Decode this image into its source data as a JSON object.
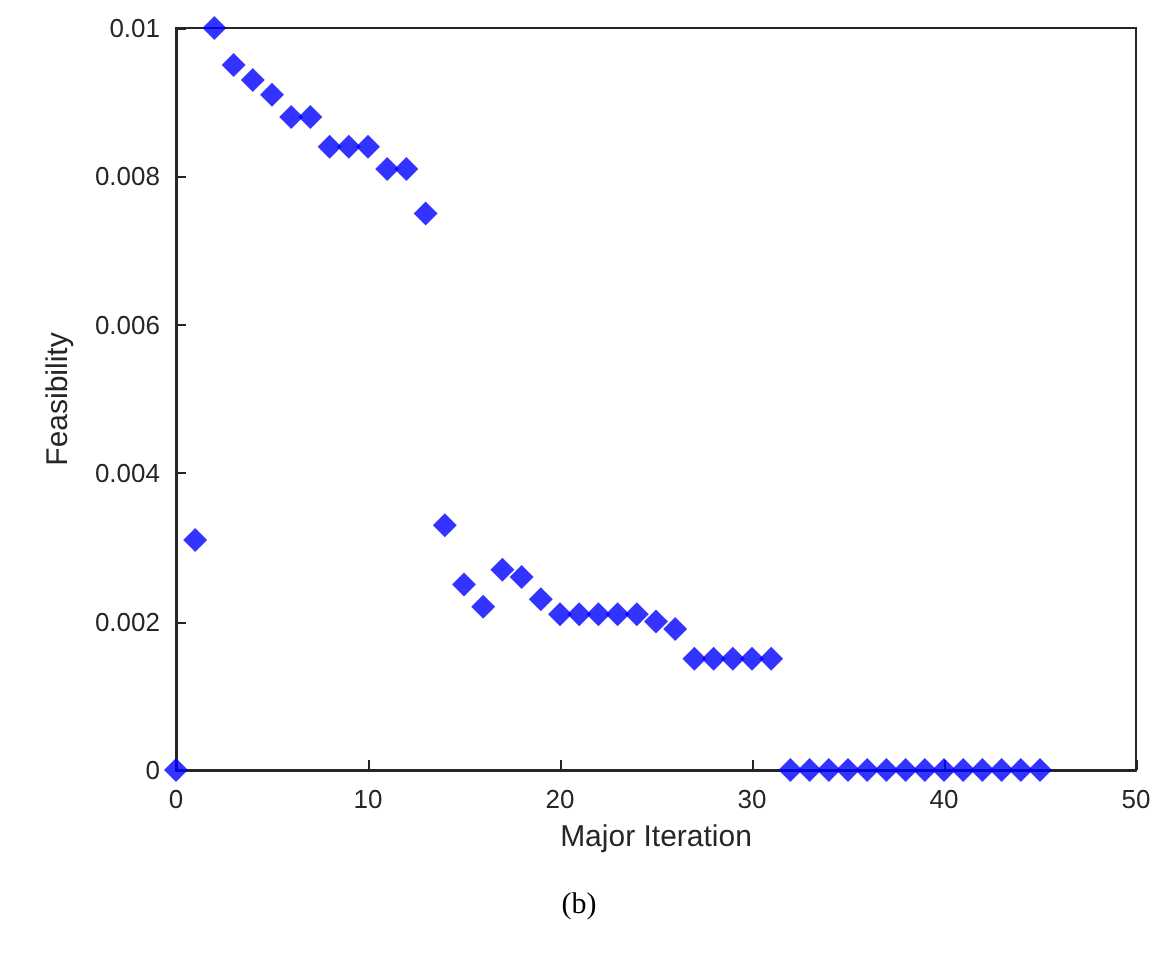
{
  "chart_data": {
    "type": "scatter",
    "xlabel": "Major Iteration",
    "ylabel": "Feasibility",
    "annotations": [
      "(b)"
    ],
    "x": [
      0,
      1,
      2,
      3,
      4,
      5,
      6,
      7,
      8,
      9,
      10,
      11,
      12,
      13,
      14,
      15,
      16,
      17,
      18,
      19,
      20,
      21,
      22,
      23,
      24,
      25,
      26,
      27,
      28,
      29,
      30,
      31,
      32,
      33,
      34,
      35,
      36,
      37,
      38,
      39,
      40,
      41,
      42,
      43,
      44,
      45
    ],
    "series": [
      {
        "color": "#0000ff",
        "values": [
          0,
          0.0031,
          0.01,
          0.0095,
          0.0093,
          0.0091,
          0.0088,
          0.0088,
          0.0084,
          0.0084,
          0.0084,
          0.0081,
          0.0081,
          0.0075,
          0.0033,
          0.0025,
          0.0022,
          0.0027,
          0.0026,
          0.0023,
          0.0021,
          0.0021,
          0.0021,
          0.0021,
          0.0021,
          0.002,
          0.0019,
          0.0015,
          0.0015,
          0.0015,
          0.0015,
          0.0015,
          0,
          0,
          0,
          0,
          0,
          0,
          0,
          0,
          0,
          0,
          0,
          0,
          0,
          0
        ]
      }
    ],
    "xlim": [
      0,
      50
    ],
    "xticks": [
      0,
      10,
      20,
      30,
      40,
      50
    ],
    "ylim": [
      0,
      0.01
    ],
    "yticks": [
      0,
      0.002,
      0.004,
      0.006,
      0.008,
      0.01
    ],
    "marker": "diamond",
    "grid": false
  }
}
